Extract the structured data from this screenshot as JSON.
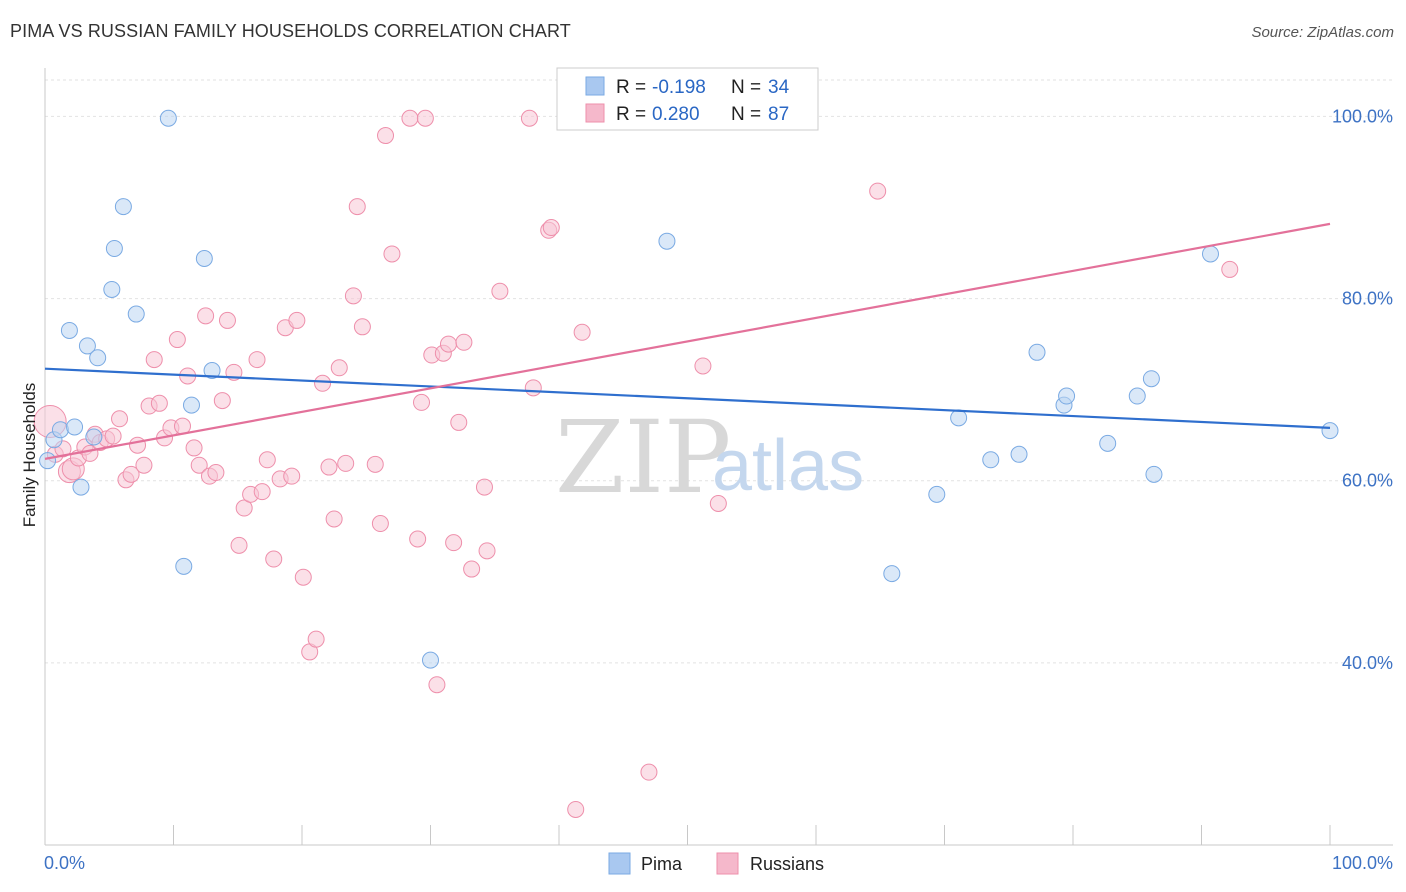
{
  "header": {
    "title": "PIMA VS RUSSIAN FAMILY HOUSEHOLDS CORRELATION CHART",
    "source": "Source: ZipAtlas.com"
  },
  "legend": {
    "r_label": "R =",
    "n_label": "N =",
    "rows": [
      {
        "r": "-0.198",
        "n": "34",
        "color": "#a9c8f0"
      },
      {
        "r": "0.280",
        "n": "87",
        "color": "#f5b8cb"
      }
    ]
  },
  "watermark": {
    "zip": "ZIP",
    "atlas": "atlas"
  },
  "chart_data": {
    "type": "scatter",
    "ylabel": "Family Households",
    "xlim": [
      0,
      100
    ],
    "ylim": [
      20,
      104
    ],
    "x_tick_labels": [
      "0.0%",
      "100.0%"
    ],
    "y_ticks": [
      40,
      60,
      80,
      100
    ],
    "y_tick_labels": [
      "40.0%",
      "60.0%",
      "80.0%",
      "100.0%"
    ],
    "grid": true,
    "legend_position": "top-center",
    "series": [
      {
        "name": "Pima",
        "color": "#7aaae3",
        "fill": "#bcd5f3",
        "trend": {
          "x": [
            0,
            100
          ],
          "y": [
            72.3,
            65.8
          ],
          "color": "#2f6fce"
        },
        "points": [
          [
            0.2,
            62.2
          ],
          [
            0.7,
            64.5
          ],
          [
            1.2,
            65.6
          ],
          [
            1.9,
            76.5
          ],
          [
            2.3,
            65.9
          ],
          [
            2.8,
            59.3
          ],
          [
            3.3,
            74.8
          ],
          [
            3.8,
            64.8
          ],
          [
            4.1,
            73.5
          ],
          [
            5.2,
            81.0
          ],
          [
            5.4,
            85.5
          ],
          [
            6.1,
            90.1
          ],
          [
            7.1,
            78.3
          ],
          [
            9.6,
            99.8
          ],
          [
            10.8,
            50.6
          ],
          [
            11.4,
            68.3
          ],
          [
            12.4,
            84.4
          ],
          [
            13.0,
            72.1
          ],
          [
            30.0,
            40.3
          ],
          [
            48.4,
            86.3
          ],
          [
            65.9,
            49.8
          ],
          [
            69.4,
            58.5
          ],
          [
            71.1,
            66.9
          ],
          [
            73.6,
            62.3
          ],
          [
            75.8,
            62.9
          ],
          [
            77.2,
            74.1
          ],
          [
            79.3,
            68.3
          ],
          [
            79.5,
            69.3
          ],
          [
            82.7,
            64.1
          ],
          [
            85.0,
            69.3
          ],
          [
            86.1,
            71.2
          ],
          [
            86.3,
            60.7
          ],
          [
            90.7,
            84.9
          ],
          [
            100.0,
            65.5
          ]
        ]
      },
      {
        "name": "Russians",
        "color": "#ee8fab",
        "fill": "#f8c7d6",
        "trend": {
          "x": [
            0,
            100
          ],
          "y": [
            62.4,
            88.2
          ],
          "color": "#e3719a"
        },
        "points": [
          [
            0.4,
            66.5
          ],
          [
            0.8,
            62.9
          ],
          [
            1.4,
            63.5
          ],
          [
            1.9,
            61.0
          ],
          [
            2.2,
            61.3
          ],
          [
            2.6,
            62.5
          ],
          [
            3.1,
            63.7
          ],
          [
            3.5,
            63.0
          ],
          [
            3.9,
            65.1
          ],
          [
            4.3,
            64.2
          ],
          [
            4.8,
            64.6
          ],
          [
            5.3,
            64.9
          ],
          [
            5.8,
            66.8
          ],
          [
            6.3,
            60.1
          ],
          [
            6.7,
            60.7
          ],
          [
            7.2,
            63.9
          ],
          [
            7.7,
            61.7
          ],
          [
            8.1,
            68.2
          ],
          [
            8.5,
            73.3
          ],
          [
            8.9,
            68.5
          ],
          [
            9.3,
            64.7
          ],
          [
            9.8,
            65.8
          ],
          [
            10.3,
            75.5
          ],
          [
            10.7,
            66.0
          ],
          [
            11.1,
            71.5
          ],
          [
            11.6,
            63.6
          ],
          [
            12.0,
            61.7
          ],
          [
            12.5,
            78.1
          ],
          [
            12.8,
            60.5
          ],
          [
            13.3,
            60.9
          ],
          [
            13.8,
            68.8
          ],
          [
            14.2,
            77.6
          ],
          [
            14.7,
            71.9
          ],
          [
            15.1,
            52.9
          ],
          [
            15.5,
            57.0
          ],
          [
            16.0,
            58.5
          ],
          [
            16.5,
            73.3
          ],
          [
            16.9,
            58.8
          ],
          [
            17.3,
            62.3
          ],
          [
            17.8,
            51.4
          ],
          [
            18.3,
            60.2
          ],
          [
            18.7,
            76.8
          ],
          [
            19.2,
            60.5
          ],
          [
            19.6,
            77.6
          ],
          [
            20.1,
            49.4
          ],
          [
            20.6,
            41.2
          ],
          [
            21.1,
            42.6
          ],
          [
            21.6,
            70.7
          ],
          [
            22.1,
            61.5
          ],
          [
            22.5,
            55.8
          ],
          [
            22.9,
            72.4
          ],
          [
            23.4,
            61.9
          ],
          [
            24.0,
            80.3
          ],
          [
            24.3,
            90.1
          ],
          [
            24.7,
            76.9
          ],
          [
            25.7,
            61.8
          ],
          [
            26.1,
            55.3
          ],
          [
            26.5,
            97.9
          ],
          [
            27.0,
            84.9
          ],
          [
            28.4,
            99.8
          ],
          [
            29.0,
            53.6
          ],
          [
            29.3,
            68.6
          ],
          [
            29.6,
            99.8
          ],
          [
            30.1,
            73.8
          ],
          [
            30.5,
            37.6
          ],
          [
            31.0,
            74.0
          ],
          [
            31.4,
            75.0
          ],
          [
            31.8,
            53.2
          ],
          [
            32.2,
            66.4
          ],
          [
            32.6,
            75.2
          ],
          [
            33.2,
            50.3
          ],
          [
            34.2,
            59.3
          ],
          [
            34.4,
            52.3
          ],
          [
            35.4,
            80.8
          ],
          [
            37.7,
            99.8
          ],
          [
            38.0,
            70.2
          ],
          [
            39.2,
            87.5
          ],
          [
            39.4,
            87.8
          ],
          [
            41.3,
            23.9
          ],
          [
            41.8,
            76.3
          ],
          [
            47.0,
            28.0
          ],
          [
            49.2,
            99.8
          ],
          [
            50.5,
            99.4
          ],
          [
            51.2,
            72.6
          ],
          [
            52.4,
            57.5
          ],
          [
            64.8,
            91.8
          ],
          [
            92.2,
            83.2
          ]
        ]
      }
    ]
  },
  "bottom_legend": [
    {
      "label": "Pima",
      "color": "#a9c8f0"
    },
    {
      "label": "Russians",
      "color": "#f5b8cb"
    }
  ]
}
